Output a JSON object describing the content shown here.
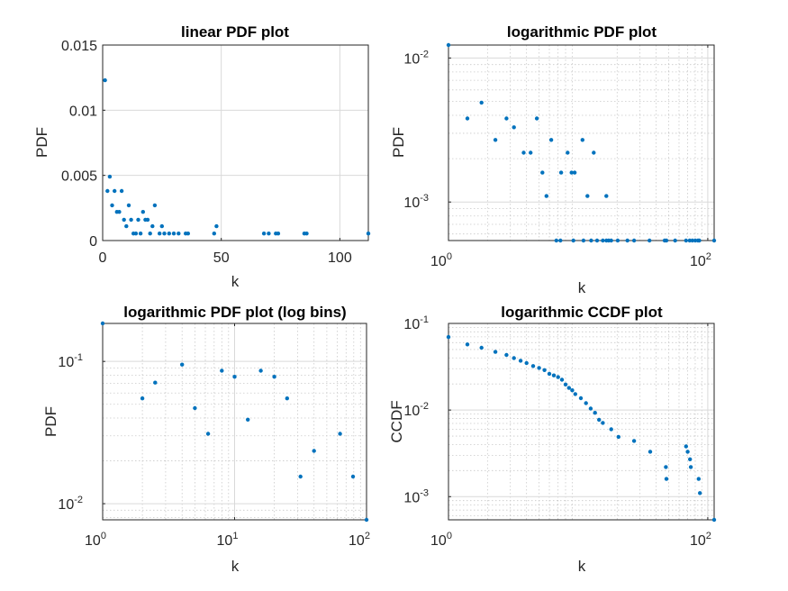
{
  "colors": {
    "marker": "#0072bd",
    "axis": "#262626",
    "grid": "#d9d9d9",
    "background": "#ffffff"
  },
  "chart_data": [
    {
      "id": "linear-pdf",
      "type": "scatter",
      "title": "linear PDF plot",
      "xlabel": "k",
      "ylabel": "PDF",
      "xscale": "linear",
      "yscale": "linear",
      "xlim": [
        0,
        112
      ],
      "ylim": [
        0,
        0.015
      ],
      "xticks": [
        0,
        50,
        100
      ],
      "xtick_labels": [
        "0",
        "50",
        "100"
      ],
      "yticks": [
        0,
        0.005,
        0.01,
        0.015
      ],
      "ytick_labels": [
        "0",
        "0.005",
        "0.01",
        "0.015"
      ],
      "grid": true,
      "points": [
        [
          1,
          0.0123
        ],
        [
          2,
          0.0038
        ],
        [
          3,
          0.0049
        ],
        [
          4,
          0.0027
        ],
        [
          5,
          0.0038
        ],
        [
          6,
          0.0022
        ],
        [
          7,
          0.0022
        ],
        [
          8,
          0.0038
        ],
        [
          9,
          0.0016
        ],
        [
          10,
          0.0011
        ],
        [
          11,
          0.0027
        ],
        [
          12,
          0.0016
        ],
        [
          13,
          0.00054
        ],
        [
          14,
          0.00054
        ],
        [
          15,
          0.0016
        ],
        [
          16,
          0.00054
        ],
        [
          17,
          0.0022
        ],
        [
          18,
          0.0016
        ],
        [
          19,
          0.0016
        ],
        [
          20,
          0.00054
        ],
        [
          21,
          0.0011
        ],
        [
          22,
          0.0027
        ],
        [
          24,
          0.00054
        ],
        [
          25,
          0.0011
        ],
        [
          26,
          0.00054
        ],
        [
          28,
          0.00054
        ],
        [
          30,
          0.00054
        ],
        [
          32,
          0.00054
        ],
        [
          35,
          0.00054
        ],
        [
          36,
          0.00054
        ],
        [
          47,
          0.00054
        ],
        [
          48,
          0.0011
        ],
        [
          68,
          0.00054
        ],
        [
          70,
          0.00054
        ],
        [
          73,
          0.00054
        ],
        [
          74,
          0.00054
        ],
        [
          85,
          0.00054
        ],
        [
          86,
          0.00054
        ],
        [
          112,
          0.00054
        ]
      ]
    },
    {
      "id": "log-pdf",
      "type": "scatter",
      "title": "logarithmic PDF plot",
      "xlabel": "k",
      "ylabel": "PDF",
      "xscale": "log",
      "yscale": "log",
      "xlim": [
        1,
        112
      ],
      "ylim": [
        0.00054,
        0.0123
      ],
      "xtick_exponents": [
        0,
        2
      ],
      "ytick_exponents": [
        -3,
        -2
      ],
      "grid": true,
      "points": [
        [
          1,
          0.0123
        ],
        [
          1.4,
          0.0038
        ],
        [
          1.8,
          0.0049
        ],
        [
          2.3,
          0.0027
        ],
        [
          2.8,
          0.0038
        ],
        [
          3.2,
          0.0033
        ],
        [
          3.8,
          0.0022
        ],
        [
          4.3,
          0.0022
        ],
        [
          4.8,
          0.0038
        ],
        [
          5.3,
          0.0016
        ],
        [
          5.7,
          0.0011
        ],
        [
          6.2,
          0.0027
        ],
        [
          6.8,
          0.00054
        ],
        [
          7.4,
          0.0016
        ],
        [
          8.3,
          0.0022
        ],
        [
          8.9,
          0.0016
        ],
        [
          9.4,
          0.0016
        ],
        [
          10.8,
          0.0027
        ],
        [
          11.8,
          0.0011
        ],
        [
          13.2,
          0.0022
        ],
        [
          16.5,
          0.0011
        ],
        [
          7.3,
          0.00054
        ],
        [
          9.2,
          0.00054
        ],
        [
          11.0,
          0.00054
        ],
        [
          12.6,
          0.00054
        ],
        [
          14.0,
          0.00054
        ],
        [
          15.5,
          0.00054
        ],
        [
          16.5,
          0.00054
        ],
        [
          17.2,
          0.00054
        ],
        [
          18.0,
          0.00054
        ],
        [
          20.2,
          0.00054
        ],
        [
          24.0,
          0.00054
        ],
        [
          27.0,
          0.00054
        ],
        [
          35.5,
          0.00054
        ],
        [
          46.5,
          0.00054
        ],
        [
          48.0,
          0.00054
        ],
        [
          56.0,
          0.00054
        ],
        [
          68.0,
          0.00054
        ],
        [
          72.5,
          0.00054
        ],
        [
          76.0,
          0.00054
        ],
        [
          80.0,
          0.00054
        ],
        [
          84.0,
          0.00054
        ],
        [
          86.0,
          0.00054
        ],
        [
          112,
          0.00054
        ]
      ]
    },
    {
      "id": "log-pdf-logbins",
      "type": "scatter",
      "title": "logarithmic PDF plot (log bins)",
      "xlabel": "k",
      "ylabel": "PDF",
      "xscale": "log",
      "yscale": "log",
      "xlim": [
        1,
        100
      ],
      "ylim": [
        0.0077,
        0.185
      ],
      "xtick_exponents": [
        0,
        1,
        2
      ],
      "ytick_exponents": [
        -2,
        -1
      ],
      "grid": true,
      "points": [
        [
          1,
          0.185
        ],
        [
          2,
          0.055
        ],
        [
          2.5,
          0.071
        ],
        [
          4,
          0.095
        ],
        [
          5,
          0.047
        ],
        [
          6.3,
          0.031
        ],
        [
          8,
          0.086
        ],
        [
          10,
          0.078
        ],
        [
          12.6,
          0.039
        ],
        [
          15.8,
          0.086
        ],
        [
          20,
          0.078
        ],
        [
          25,
          0.055
        ],
        [
          31.6,
          0.0155
        ],
        [
          40,
          0.0235
        ],
        [
          63,
          0.031
        ],
        [
          79,
          0.0155
        ],
        [
          100,
          0.0077
        ]
      ]
    },
    {
      "id": "log-ccdf",
      "type": "scatter",
      "title": "logarithmic CCDF plot",
      "xlabel": "k",
      "ylabel": "CCDF",
      "xscale": "log",
      "yscale": "log",
      "xlim": [
        1,
        112
      ],
      "ylim": [
        0.00054,
        0.1
      ],
      "xtick_exponents": [
        0,
        2
      ],
      "ytick_exponents": [
        -3,
        -2,
        -1
      ],
      "grid": true,
      "points": [
        [
          1,
          0.0696
        ],
        [
          1.4,
          0.0573
        ],
        [
          1.8,
          0.0524
        ],
        [
          2.3,
          0.0469
        ],
        [
          2.8,
          0.0432
        ],
        [
          3.2,
          0.0398
        ],
        [
          3.6,
          0.0371
        ],
        [
          4.0,
          0.0349
        ],
        [
          4.5,
          0.0322
        ],
        [
          5.0,
          0.0306
        ],
        [
          5.5,
          0.0289
        ],
        [
          6.0,
          0.0262
        ],
        [
          6.5,
          0.0251
        ],
        [
          7.0,
          0.024
        ],
        [
          7.5,
          0.0224
        ],
        [
          8.0,
          0.0197
        ],
        [
          8.5,
          0.018
        ],
        [
          9.0,
          0.0169
        ],
        [
          9.5,
          0.0153
        ],
        [
          10.5,
          0.0137
        ],
        [
          11.5,
          0.012
        ],
        [
          12.5,
          0.0104
        ],
        [
          13.5,
          0.0093
        ],
        [
          14.5,
          0.0077
        ],
        [
          15.5,
          0.0071
        ],
        [
          18.0,
          0.006
        ],
        [
          20.5,
          0.0049
        ],
        [
          27.0,
          0.0044
        ],
        [
          36.0,
          0.0033
        ],
        [
          47.5,
          0.0022
        ],
        [
          48.0,
          0.0016
        ],
        [
          68.0,
          0.0038
        ],
        [
          70.0,
          0.0033
        ],
        [
          73.0,
          0.0027
        ],
        [
          74.0,
          0.0022
        ],
        [
          85.0,
          0.0016
        ],
        [
          87.0,
          0.0011
        ],
        [
          112,
          0.00054
        ]
      ]
    }
  ]
}
